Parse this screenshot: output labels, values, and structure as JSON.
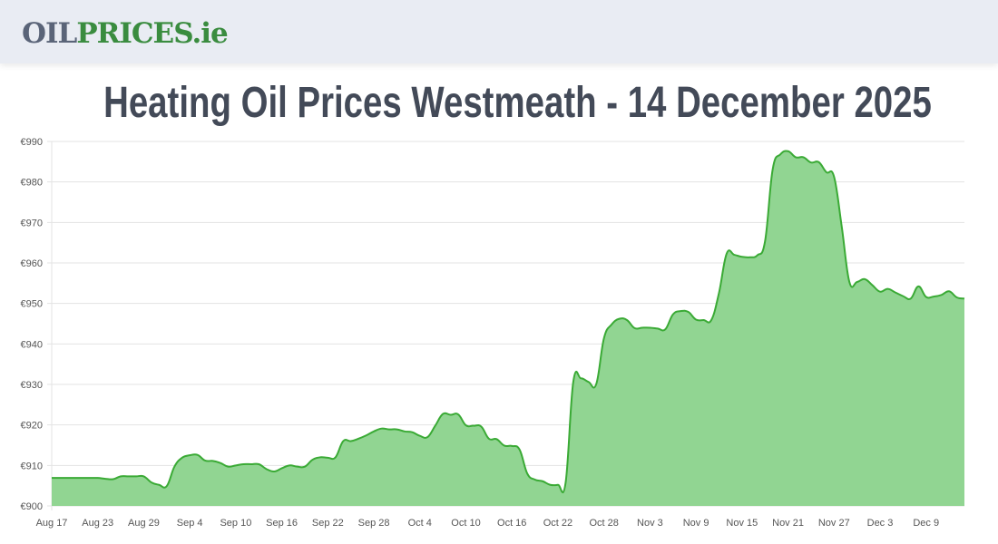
{
  "header": {
    "logo_part1": "OIL",
    "logo_part2": "PRICES.ie"
  },
  "page_title": "Heating Oil Prices Westmeath - 14 December 2025",
  "colors": {
    "line": "#3aaa35",
    "fill": "#91d592",
    "grid": "#e3e3e3",
    "title": "#434a58",
    "logo_gray": "#5a6478",
    "logo_green": "#3a8c3f"
  },
  "chart_data": {
    "type": "area",
    "title": "",
    "xlabel": "",
    "ylabel": "",
    "ylim": [
      900,
      990
    ],
    "y_ticks": [
      "€900",
      "€910",
      "€920",
      "€930",
      "€940",
      "€950",
      "€960",
      "€970",
      "€980",
      "€990"
    ],
    "x_ticks": [
      "Aug 17",
      "Aug 23",
      "Aug 29",
      "Sep 4",
      "Sep 10",
      "Sep 16",
      "Sep 22",
      "Sep 28",
      "Oct 4",
      "Oct 10",
      "Oct 16",
      "Oct 22",
      "Oct 28",
      "Nov 3",
      "Nov 9",
      "Nov 15",
      "Nov 21",
      "Nov 27",
      "Dec 3",
      "Dec 9"
    ],
    "grid": true,
    "legend": "none",
    "x": [
      "Aug 17",
      "Aug 18",
      "Aug 19",
      "Aug 20",
      "Aug 21",
      "Aug 22",
      "Aug 23",
      "Aug 24",
      "Aug 25",
      "Aug 26",
      "Aug 27",
      "Aug 28",
      "Aug 29",
      "Aug 30",
      "Aug 31",
      "Sep 1",
      "Sep 2",
      "Sep 3",
      "Sep 4",
      "Sep 5",
      "Sep 6",
      "Sep 7",
      "Sep 8",
      "Sep 9",
      "Sep 10",
      "Sep 11",
      "Sep 12",
      "Sep 13",
      "Sep 14",
      "Sep 15",
      "Sep 16",
      "Sep 17",
      "Sep 18",
      "Sep 19",
      "Sep 20",
      "Sep 21",
      "Sep 22",
      "Sep 23",
      "Sep 24",
      "Sep 25",
      "Sep 26",
      "Sep 27",
      "Sep 28",
      "Sep 29",
      "Sep 30",
      "Oct 1",
      "Oct 2",
      "Oct 3",
      "Oct 4",
      "Oct 5",
      "Oct 6",
      "Oct 7",
      "Oct 8",
      "Oct 9",
      "Oct 10",
      "Oct 11",
      "Oct 12",
      "Oct 13",
      "Oct 14",
      "Oct 15",
      "Oct 16",
      "Oct 17",
      "Oct 18",
      "Oct 19",
      "Oct 20",
      "Oct 21",
      "Oct 22",
      "Oct 23",
      "Oct 24",
      "Oct 25",
      "Oct 26",
      "Oct 27",
      "Oct 28",
      "Oct 29",
      "Oct 30",
      "Oct 31",
      "Nov 1",
      "Nov 2",
      "Nov 3",
      "Nov 4",
      "Nov 5",
      "Nov 6",
      "Nov 7",
      "Nov 8",
      "Nov 9",
      "Nov 10",
      "Nov 11",
      "Nov 12",
      "Nov 13",
      "Nov 14",
      "Nov 15",
      "Nov 16",
      "Nov 17",
      "Nov 18",
      "Nov 19",
      "Nov 20",
      "Nov 21",
      "Nov 22",
      "Nov 23",
      "Nov 24",
      "Nov 25",
      "Nov 26",
      "Nov 27",
      "Nov 28",
      "Nov 29",
      "Nov 30",
      "Dec 1",
      "Dec 2",
      "Dec 3",
      "Dec 4",
      "Dec 5",
      "Dec 6",
      "Dec 7",
      "Dec 8",
      "Dec 9",
      "Dec 10",
      "Dec 11",
      "Dec 12",
      "Dec 13",
      "Dec 14"
    ],
    "series": [
      {
        "values": [
          906.9,
          906.9,
          906.9,
          906.9,
          906.9,
          906.9,
          906.9,
          906.7,
          906.6,
          907.3,
          907.3,
          907.3,
          907.3,
          905.8,
          905.2,
          904.9,
          909.7,
          911.9,
          912.5,
          912.6,
          911.2,
          911.1,
          910.6,
          909.7,
          910.0,
          910.3,
          910.3,
          910.3,
          909.1,
          908.5,
          909.3,
          910.0,
          909.7,
          909.7,
          911.4,
          912.0,
          911.9,
          912.0,
          916.0,
          916.0,
          916.6,
          917.4,
          918.4,
          919.1,
          918.9,
          918.9,
          918.4,
          918.2,
          917.3,
          917.0,
          919.8,
          922.7,
          922.5,
          922.6,
          919.9,
          919.8,
          919.6,
          916.6,
          916.5,
          914.9,
          914.8,
          913.9,
          908.0,
          906.5,
          906.1,
          905.2,
          905.2,
          905.7,
          930.6,
          931.5,
          930.6,
          930.1,
          941.4,
          944.8,
          946.2,
          945.9,
          943.9,
          944.0,
          944.0,
          943.8,
          943.6,
          947.3,
          948.1,
          947.9,
          946.0,
          945.9,
          945.9,
          952.6,
          962.3,
          962.0,
          961.5,
          961.4,
          961.9,
          965.3,
          983.1,
          986.8,
          987.6,
          986.1,
          986.1,
          984.8,
          984.9,
          982.4,
          981.3,
          969.0,
          955.3,
          955.3,
          956.0,
          954.5,
          952.9,
          953.6,
          952.7,
          951.8,
          951.2,
          954.2,
          951.6,
          951.7,
          952.1,
          953.0,
          951.5,
          951.2
        ]
      }
    ]
  }
}
